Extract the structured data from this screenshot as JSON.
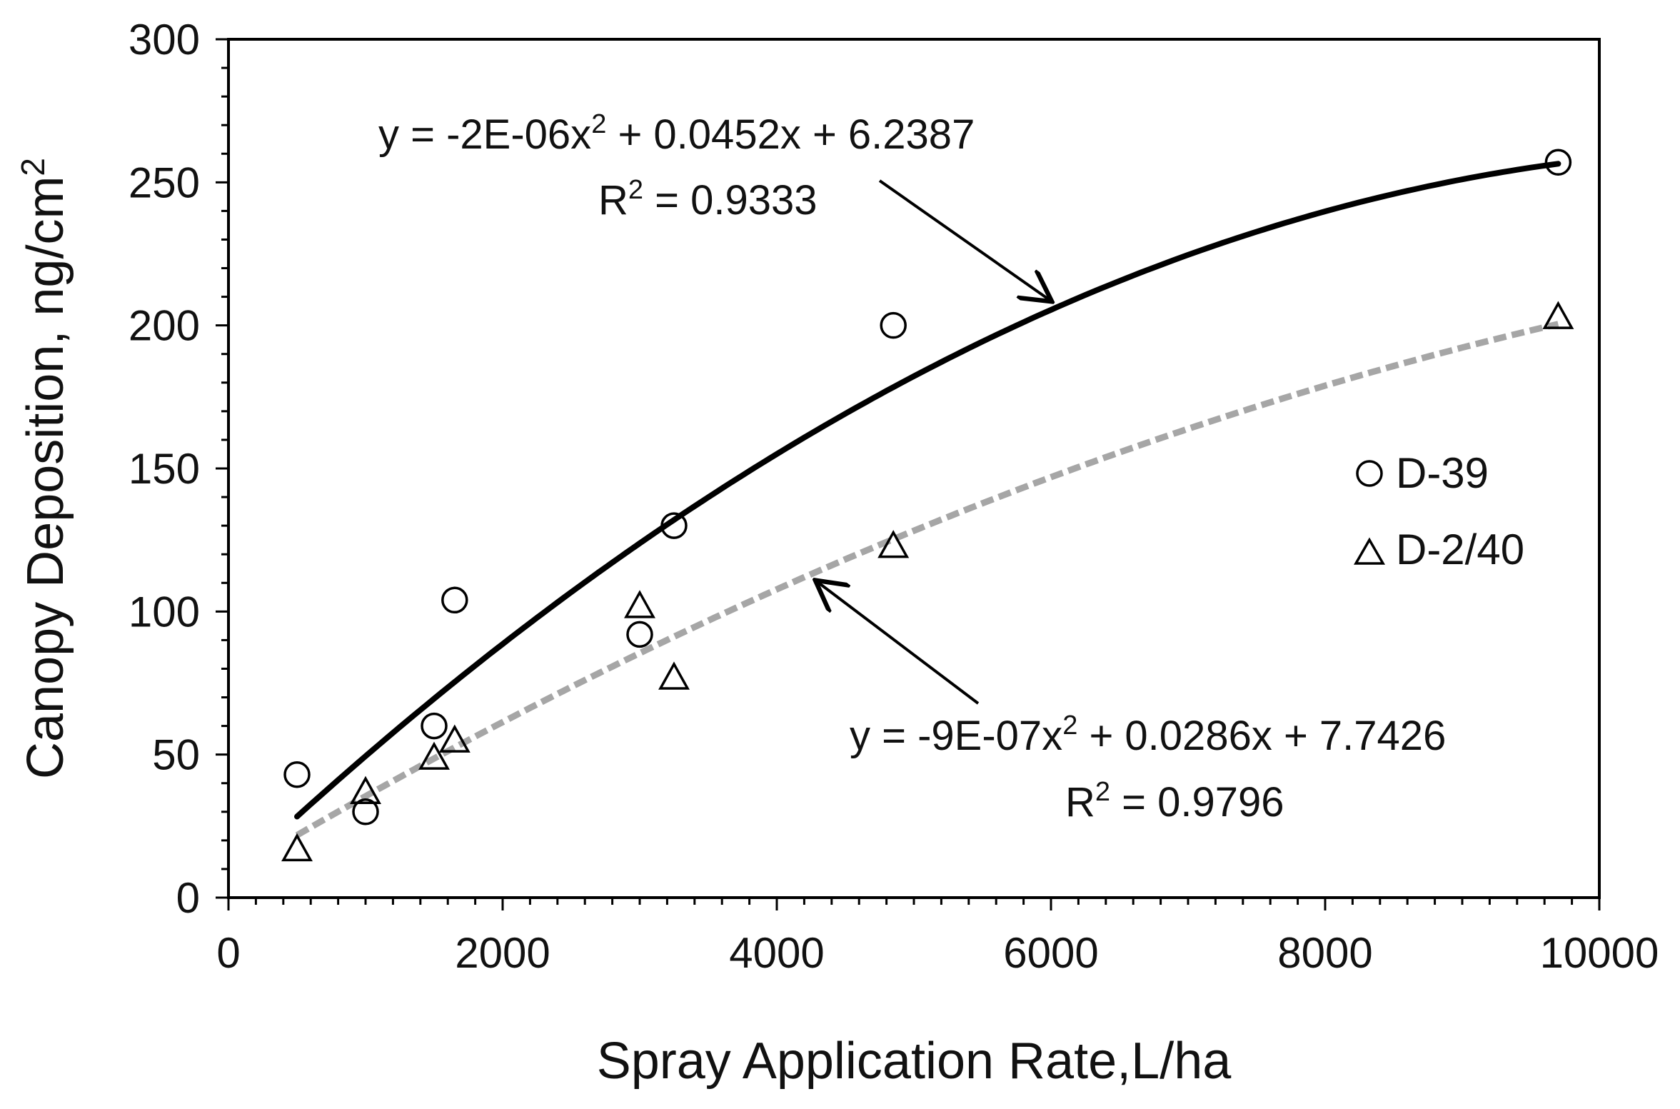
{
  "chart_data": {
    "type": "scatter",
    "xlabel": "Spray Application Rate,L/ha",
    "ylabel": "Canopy Deposition, ng/cm",
    "ylabel_sup": "2",
    "xlim": [
      0,
      10000
    ],
    "ylim": [
      0,
      300
    ],
    "x_ticks": [
      "0",
      "2000",
      "4000",
      "6000",
      "8000",
      "10000"
    ],
    "y_ticks": [
      "0",
      "50",
      "100",
      "150",
      "200",
      "250",
      "300"
    ],
    "grid": false,
    "legend_position": "right",
    "series": [
      {
        "name": "D-39",
        "marker": "circle",
        "color": "#000000",
        "x": [
          500,
          1000,
          1500,
          1650,
          3000,
          3250,
          4850,
          9700
        ],
        "y": [
          43,
          30,
          60,
          104,
          92,
          130,
          200,
          257
        ],
        "trendline": {
          "type": "polynomial",
          "order": 2,
          "coefficients": [
            -2e-06,
            0.0452,
            6.2387
          ],
          "x_range": [
            500,
            9700
          ],
          "style": "solid",
          "color": "#000000",
          "equation_main": "y = -2E-06x",
          "equation_sup": "2",
          "equation_tail": " + 0.0452x + 6.2387",
          "r2_main": "R",
          "r2_sup": "2",
          "r2_tail": " = 0.9333"
        }
      },
      {
        "name": "D-2/40",
        "marker": "triangle",
        "color": "#000000",
        "x": [
          500,
          1000,
          1500,
          1650,
          3000,
          3250,
          4850,
          9700
        ],
        "y": [
          17,
          37,
          49,
          55,
          102,
          77,
          123,
          203
        ],
        "trendline": {
          "type": "polynomial",
          "order": 2,
          "coefficients": [
            -9e-07,
            0.0286,
            7.7426
          ],
          "x_range": [
            500,
            9700
          ],
          "style": "dashed",
          "color": "#a6a6a6",
          "equation_main": "y = -9E-07x",
          "equation_sup": "2",
          "equation_tail": " + 0.0286x + 7.7426",
          "r2_main": "R",
          "r2_sup": "2",
          "r2_tail": " = 0.9796"
        }
      }
    ]
  }
}
